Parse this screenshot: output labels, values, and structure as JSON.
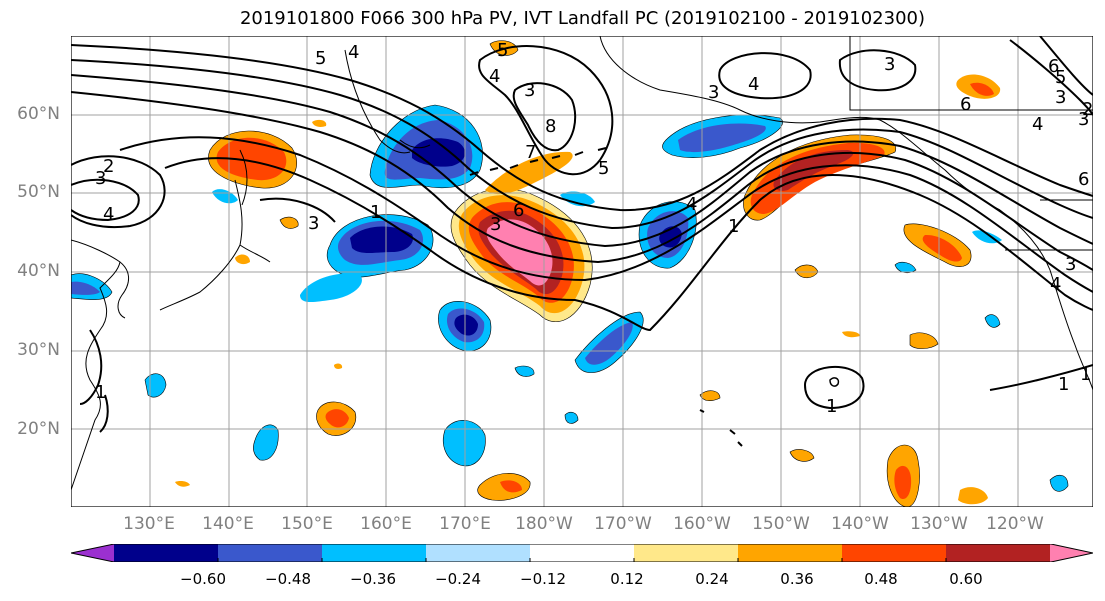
{
  "title": "2019101800 F066 300 hPa PV, IVT Landfall PC (2019102100 - 2019102300)",
  "map": {
    "projection": "PlateCarree",
    "lon_range": [
      120,
      249.5
    ],
    "lat_range": [
      10,
      70
    ],
    "grid": true,
    "lat_labels": [
      "60°N",
      "50°N",
      "40°N",
      "30°N",
      "20°N"
    ],
    "lon_labels": [
      "130°E",
      "140°E",
      "150°E",
      "160°E",
      "170°E",
      "180°W",
      "170°W",
      "160°W",
      "150°W",
      "140°W",
      "130°W",
      "120°W"
    ]
  },
  "colorbar": {
    "tick_labels": [
      "−0.60",
      "−0.48",
      "−0.36",
      "−0.24",
      "−0.12",
      "0.12",
      "0.24",
      "0.36",
      "0.48",
      "0.60"
    ],
    "colors": [
      "#9b30d0",
      "#00008b",
      "#3a58cc",
      "#00bfff",
      "#b0e0ff",
      "#ffffff",
      "#ffe88a",
      "#ffa500",
      "#ff4500",
      "#b22222",
      "#ff80b0"
    ]
  },
  "colors": {
    "pv_contours": "#000000",
    "coastlines": "#000000",
    "gridlines": "#a0a0a0",
    "lat_lon_label_color": "#808080"
  },
  "pv_contour_labels": [
    "5",
    "4",
    "5",
    "4",
    "3",
    "8",
    "7",
    "3",
    "6",
    "5",
    "4",
    "1",
    "1",
    "3",
    "2",
    "3",
    "4",
    "1",
    "3",
    "6",
    "3",
    "3",
    "5",
    "6",
    "4",
    "3",
    "2",
    "1",
    "4",
    "6",
    "4",
    "3",
    "1",
    "1"
  ]
}
